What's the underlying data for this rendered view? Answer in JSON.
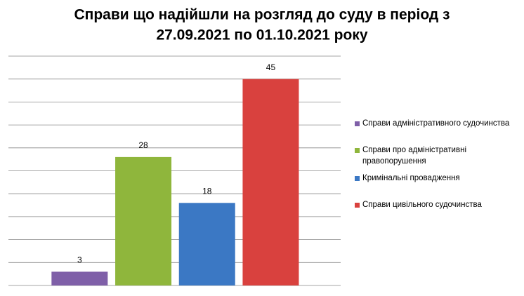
{
  "chart_data": {
    "type": "bar",
    "title": [
      "Справи що надійшли на розгляд до суду в період з",
      "27.09.2021  по 01.10.2021 року"
    ],
    "series": [
      {
        "name": "Справи адміністративного судочинства",
        "color": "#7f5fa8",
        "values": [
          3
        ]
      },
      {
        "name": "Справи про адміністративні правопорушення",
        "color": "#8fb63c",
        "values": [
          28
        ]
      },
      {
        "name": "Кримінальні провадження",
        "color": "#3b78c4",
        "values": [
          18
        ]
      },
      {
        "name": "Справи цивільного судочинства",
        "color": "#d9413e",
        "values": [
          45
        ]
      }
    ],
    "ylim": [
      0,
      50
    ],
    "yticks": [
      0,
      5,
      10,
      15,
      20,
      25,
      30,
      35,
      40,
      45,
      50
    ],
    "grid": true
  }
}
